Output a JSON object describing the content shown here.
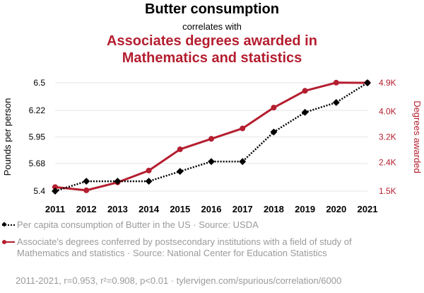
{
  "header": {
    "title": "Butter consumption",
    "subtitle": "correlates with",
    "title2_line1": "Associates degrees awarded in",
    "title2_line2": "Mathematics and statistics"
  },
  "colors": {
    "series1": "#000000",
    "series2": "#b41e2f",
    "grid": "#e6e6e6"
  },
  "chart_data": {
    "type": "line",
    "x": [
      2011,
      2012,
      2013,
      2014,
      2015,
      2016,
      2017,
      2018,
      2019,
      2020,
      2021
    ],
    "ylabel_left": "Pounds per person",
    "ylabel_right": "Degrees awarded",
    "left_axis": {
      "ylim": [
        5.4,
        6.5
      ],
      "ticks": [
        5.4,
        5.68,
        5.95,
        6.22,
        6.5
      ],
      "tick_labels": [
        "5.4",
        "5.68",
        "5.95",
        "6.22",
        "6.5"
      ]
    },
    "right_axis": {
      "ylim": [
        1500,
        4900
      ],
      "ticks": [
        1500,
        2400,
        3200,
        4000,
        4900
      ],
      "tick_labels": [
        "1.5K",
        "2.4K",
        "3.2K",
        "4.0K",
        "4.9K"
      ]
    },
    "series": [
      {
        "name": "Per capita consumption of Butter in the US · Source: USDA",
        "axis": "left",
        "style": "dotted-diamond",
        "values": [
          5.4,
          5.5,
          5.5,
          5.5,
          5.6,
          5.7,
          5.7,
          6.0,
          6.2,
          6.3,
          6.5
        ]
      },
      {
        "name": "Associate's degrees conferred by postsecondary institutions with a field of study of Mathematics and statistics · Source: National Center for Education Statistics",
        "axis": "right",
        "style": "solid-circle",
        "values": [
          1626,
          1524,
          1773,
          2145,
          2812,
          3141,
          3468,
          4122,
          4649,
          4905,
          4900
        ]
      }
    ]
  },
  "legend": {
    "item1": "Per capita consumption of Butter in the US · Source: USDA",
    "item2": "Associate's degrees conferred by postsecondary institutions with a field of study of Mathematics and statistics · Source: National Center for Education Statistics"
  },
  "footer": "2011-2021, r=0.953, r²=0.908, p<0.01 · tylervigen.com/spurious/correlation/6000"
}
